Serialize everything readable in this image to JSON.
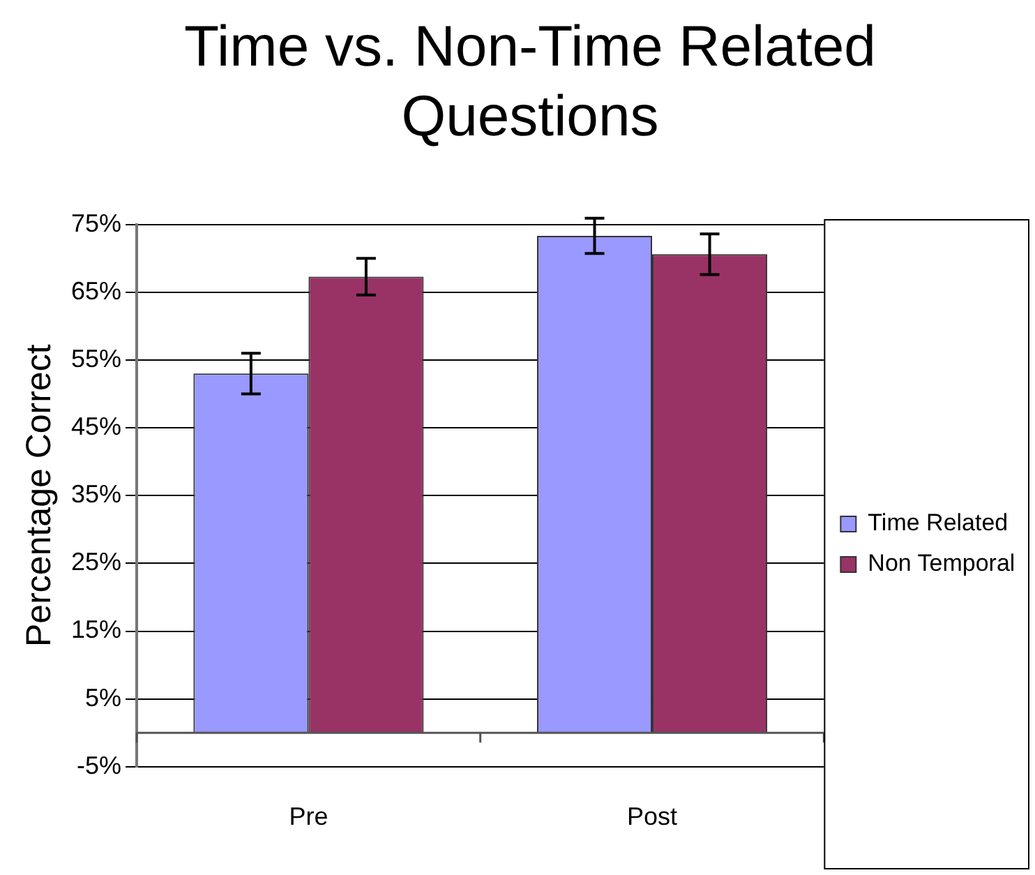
{
  "chart_data": {
    "type": "bar",
    "title": "Time vs. Non-Time Related Questions",
    "ylabel": "Percentage Correct",
    "categories": [
      "Pre",
      "Post"
    ],
    "series": [
      {
        "name": "Time Related",
        "color": "#9999ff",
        "values": [
          53,
          73.3
        ],
        "errors": [
          3,
          2.6
        ]
      },
      {
        "name": "Non Temporal",
        "color": "#993366",
        "values": [
          67.3,
          70.6
        ],
        "errors": [
          2.7,
          3
        ]
      }
    ],
    "ylim": [
      -5,
      75
    ],
    "yticks": [
      {
        "value": -5,
        "label": "-5%"
      },
      {
        "value": 5,
        "label": "5%"
      },
      {
        "value": 15,
        "label": "15%"
      },
      {
        "value": 25,
        "label": "25%"
      },
      {
        "value": 35,
        "label": "35%"
      },
      {
        "value": 45,
        "label": "45%"
      },
      {
        "value": 55,
        "label": "55%"
      },
      {
        "value": 65,
        "label": "65%"
      },
      {
        "value": 75,
        "label": "75%"
      }
    ],
    "grid": "y",
    "legend": "right"
  }
}
